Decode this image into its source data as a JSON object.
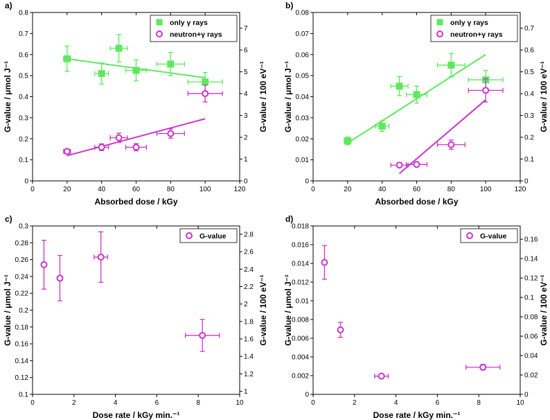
{
  "colors": {
    "gamma": "#5ee85e",
    "neutron": "#cc33cc",
    "axis": "#000000"
  },
  "chart_data": [
    {
      "id": "a",
      "type": "scatter",
      "panel_label": "a)",
      "xlabel": "Absorbed dose / kGy",
      "ylabel": "G-value / μmol J⁻¹",
      "ylabel_right": "G-value / 100 eV⁻¹",
      "xlim": [
        0,
        120
      ],
      "ylim": [
        0,
        0.8
      ],
      "ylim_right": [
        0,
        7.72
      ],
      "xticks": [
        0,
        20,
        40,
        60,
        80,
        100,
        120
      ],
      "yticks": [
        0,
        0.1,
        0.2,
        0.3,
        0.4,
        0.5,
        0.6,
        0.7,
        0.8
      ],
      "yticks_right": [
        0,
        1,
        2,
        3,
        4,
        5,
        6,
        7
      ],
      "legend": {
        "position": "top-right",
        "entries": [
          "only γ rays",
          "neutron+γ rays"
        ]
      },
      "series": [
        {
          "name": "only γ rays",
          "marker": "square",
          "color": "gamma",
          "x": [
            20,
            40,
            50,
            60,
            80,
            100
          ],
          "y": [
            0.58,
            0.51,
            0.63,
            0.525,
            0.555,
            0.47
          ],
          "xerr": [
            2,
            4,
            5,
            6,
            8,
            10
          ],
          "yerr": [
            0.06,
            0.05,
            0.065,
            0.05,
            0.055,
            0.045
          ],
          "fit": {
            "x": [
              20,
              100
            ],
            "y": [
              0.58,
              0.49
            ]
          }
        },
        {
          "name": "neutron+γ rays",
          "marker": "circle",
          "color": "neutron",
          "x": [
            20,
            40,
            50,
            60,
            80,
            100
          ],
          "y": [
            0.14,
            0.16,
            0.205,
            0.16,
            0.225,
            0.415
          ],
          "xerr": [
            2,
            4,
            5,
            6,
            8,
            10
          ],
          "yerr": [
            0.012,
            0.016,
            0.022,
            0.017,
            0.022,
            0.04
          ],
          "fit": {
            "x": [
              20,
              100
            ],
            "y": [
              0.12,
              0.295
            ]
          }
        }
      ]
    },
    {
      "id": "b",
      "type": "scatter",
      "panel_label": "b)",
      "xlabel": "Absorbed dose / kGy",
      "ylabel": "G-value / μmol J⁻¹",
      "ylabel_right": "G-value / 100 eV⁻¹",
      "xlim": [
        0,
        120
      ],
      "ylim": [
        0,
        0.08
      ],
      "ylim_right": [
        0,
        0.772
      ],
      "xticks": [
        0,
        20,
        40,
        60,
        80,
        100,
        120
      ],
      "yticks": [
        0,
        0.01,
        0.02,
        0.03,
        0.04,
        0.05,
        0.06,
        0.07,
        0.08
      ],
      "yticks_right": [
        0,
        0.1,
        0.2,
        0.3,
        0.4,
        0.5,
        0.6,
        0.7
      ],
      "legend": {
        "position": "top-right",
        "entries": [
          "only γ rays",
          "neutron+γ rays"
        ]
      },
      "series": [
        {
          "name": "only γ rays",
          "marker": "square",
          "color": "gamma",
          "x": [
            20,
            40,
            50,
            60,
            80,
            100
          ],
          "y": [
            0.019,
            0.026,
            0.045,
            0.041,
            0.055,
            0.048
          ],
          "xerr": [
            2,
            4,
            5,
            6,
            8,
            10
          ],
          "yerr": [
            0.0018,
            0.0025,
            0.0045,
            0.004,
            0.0055,
            0.0045
          ],
          "fit": {
            "x": [
              20,
              100
            ],
            "y": [
              0.018,
              0.06
            ]
          }
        },
        {
          "name": "neutron+γ rays",
          "marker": "circle",
          "color": "neutron",
          "x": [
            50,
            60,
            80,
            100
          ],
          "y": [
            0.0075,
            0.0078,
            0.0172,
            0.043
          ],
          "xerr": [
            5,
            6,
            8,
            10
          ],
          "yerr": [
            0.0008,
            0.0008,
            0.0022,
            0.0055
          ],
          "fit": {
            "x": [
              50,
              100
            ],
            "y": [
              0.0035,
              0.0385
            ]
          }
        }
      ]
    },
    {
      "id": "c",
      "type": "scatter",
      "panel_label": "c)",
      "xlabel": "Dose rate / kGy min.⁻¹",
      "ylabel": "G-value / μmol J⁻¹",
      "ylabel_right": "G-value / 100 eV⁻¹",
      "xlim": [
        0,
        10
      ],
      "ylim": [
        0.1,
        0.3
      ],
      "ylim_right": [
        0.965,
        2.895
      ],
      "xticks": [
        0,
        2,
        4,
        6,
        8,
        10
      ],
      "yticks": [
        0.1,
        0.12,
        0.14,
        0.16,
        0.18,
        0.2,
        0.22,
        0.24,
        0.26,
        0.28,
        0.3
      ],
      "yticks_right": [
        1,
        1.2,
        1.4,
        1.6,
        1.8,
        2,
        2.2,
        2.4,
        2.6,
        2.8
      ],
      "legend": {
        "position": "top-right",
        "entries": [
          "G-value"
        ]
      },
      "series": [
        {
          "name": "G-value",
          "marker": "circle",
          "color": "neutron",
          "x": [
            0.55,
            1.32,
            3.3,
            8.2
          ],
          "y": [
            0.254,
            0.238,
            0.263,
            0.17
          ],
          "xerr": [
            0,
            0,
            0.33,
            0.82
          ],
          "yerr": [
            0.029,
            0.027,
            0.03,
            0.019
          ]
        }
      ]
    },
    {
      "id": "d",
      "type": "scatter",
      "panel_label": "d)",
      "xlabel": "Dose rate / kGy min.⁻¹",
      "ylabel": "G-value / μmol J⁻¹",
      "ylabel_right": "G-value / 100 eV⁻¹",
      "xlim": [
        0,
        10
      ],
      "ylim": [
        0,
        0.018
      ],
      "ylim_right": [
        0,
        0.1737
      ],
      "xticks": [
        0,
        2,
        4,
        6,
        8,
        10
      ],
      "yticks": [
        0,
        0.002,
        0.004,
        0.006,
        0.008,
        0.01,
        0.012,
        0.014,
        0.016,
        0.018
      ],
      "yticks_right": [
        0,
        0.02,
        0.04,
        0.06,
        0.08,
        0.1,
        0.12,
        0.14,
        0.16
      ],
      "legend": {
        "position": "top-right",
        "entries": [
          "G-value"
        ]
      },
      "series": [
        {
          "name": "G-value",
          "marker": "circle",
          "color": "neutron",
          "x": [
            0.55,
            1.32,
            3.3,
            8.2
          ],
          "y": [
            0.0141,
            0.0069,
            0.00195,
            0.0029
          ],
          "xerr": [
            0,
            0,
            0.33,
            0.82
          ],
          "yerr": [
            0.0018,
            0.0008,
            0.0002,
            0.0003
          ]
        }
      ]
    }
  ]
}
